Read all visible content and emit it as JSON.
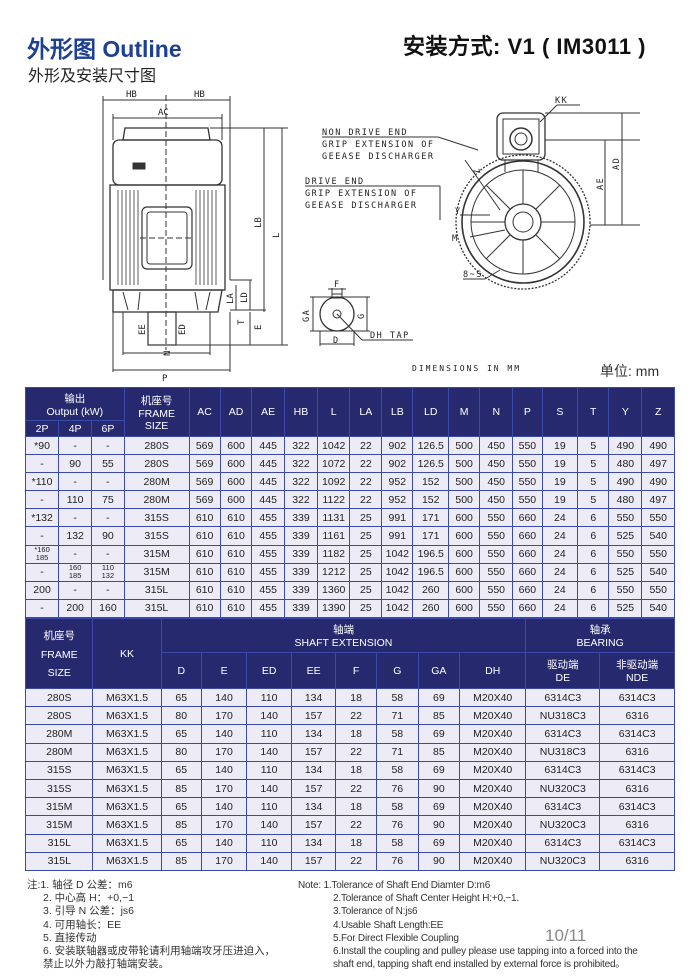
{
  "header": {
    "title": "外形图 Outline",
    "mounting": "安装方式: V1 ( IM3011 )",
    "subtitle": "外形及安装尺寸图",
    "unit": "单位: mm"
  },
  "drawing": {
    "side_labels": {
      "hb_left": "HB",
      "hb_right": "HB",
      "ac": "AC",
      "lb": "LB",
      "l": "L",
      "la": "LA",
      "ld": "LD",
      "t": "T",
      "e": "E",
      "ee": "EE",
      "ed": "ED",
      "n": "N",
      "p": "P"
    },
    "end_labels": {
      "kk": "KK",
      "ae": "AE",
      "ad": "AD",
      "y": "Y",
      "z": "Z",
      "m": "M",
      "s": "8~S"
    },
    "nde_note": [
      "NON DRIVE END",
      "GRIP EXTENSION OF",
      "GEEASE DISCHARGER"
    ],
    "de_note": [
      "DRIVE END",
      "GRIP EXTENSION OF",
      "GEEASE DISCHARGER"
    ],
    "shaft_labels": {
      "f": "F",
      "g": "G",
      "ga": "GA",
      "d": "D",
      "dh": "DH TAP"
    },
    "dimensions_note": "DIMENSIONS IN MM"
  },
  "colors": {
    "header_bg": "#27296e",
    "cell_bg": "#ecebf6",
    "border": "#3b4aa8",
    "title": "#1d3f94"
  },
  "table1": {
    "output_cn": "输出",
    "output_en": "Output (kW)",
    "poles": [
      "2P",
      "4P",
      "6P"
    ],
    "frame_cn": "机座号",
    "frame_en1": "FRAME",
    "frame_en2": "SIZE",
    "dims": [
      "AC",
      "AD",
      "AE",
      "HB",
      "L",
      "LA",
      "LB",
      "LD",
      "M",
      "N",
      "P",
      "S",
      "T",
      "Y",
      "Z"
    ],
    "rows": [
      [
        "*90",
        "-",
        "-",
        "280S",
        "569",
        "600",
        "445",
        "322",
        "1042",
        "22",
        "902",
        "126.5",
        "500",
        "450",
        "550",
        "19",
        "5",
        "490",
        "490"
      ],
      [
        "-",
        "90",
        "55",
        "280S",
        "569",
        "600",
        "445",
        "322",
        "1072",
        "22",
        "902",
        "126.5",
        "500",
        "450",
        "550",
        "19",
        "5",
        "480",
        "497"
      ],
      [
        "*110",
        "-",
        "-",
        "280M",
        "569",
        "600",
        "445",
        "322",
        "1092",
        "22",
        "952",
        "152",
        "500",
        "450",
        "550",
        "19",
        "5",
        "490",
        "490"
      ],
      [
        "-",
        "110",
        "75",
        "280M",
        "569",
        "600",
        "445",
        "322",
        "1122",
        "22",
        "952",
        "152",
        "500",
        "450",
        "550",
        "19",
        "5",
        "480",
        "497"
      ],
      [
        "*132",
        "-",
        "-",
        "315S",
        "610",
        "610",
        "455",
        "339",
        "1131",
        "25",
        "991",
        "171",
        "600",
        "550",
        "660",
        "24",
        "6",
        "550",
        "550"
      ],
      [
        "-",
        "132",
        "90",
        "315S",
        "610",
        "610",
        "455",
        "339",
        "1161",
        "25",
        "991",
        "171",
        "600",
        "550",
        "660",
        "24",
        "6",
        "525",
        "540"
      ],
      [
        "*160\n185",
        "-",
        "-",
        "315M",
        "610",
        "610",
        "455",
        "339",
        "1182",
        "25",
        "1042",
        "196.5",
        "600",
        "550",
        "660",
        "24",
        "6",
        "550",
        "550"
      ],
      [
        "-",
        "160\n185",
        "110\n132",
        "315M",
        "610",
        "610",
        "455",
        "339",
        "1212",
        "25",
        "1042",
        "196.5",
        "600",
        "550",
        "660",
        "24",
        "6",
        "525",
        "540"
      ],
      [
        "200",
        "-",
        "-",
        "315L",
        "610",
        "610",
        "455",
        "339",
        "1360",
        "25",
        "1042",
        "260",
        "600",
        "550",
        "660",
        "24",
        "6",
        "550",
        "550"
      ],
      [
        "-",
        "200",
        "160",
        "315L",
        "610",
        "610",
        "455",
        "339",
        "1390",
        "25",
        "1042",
        "260",
        "600",
        "550",
        "660",
        "24",
        "6",
        "525",
        "540"
      ]
    ]
  },
  "table2": {
    "frame_cn": "机座号",
    "frame_en1": "FRAME",
    "frame_en2": "SIZE",
    "kk": "KK",
    "shaft_cn": "轴端",
    "shaft_en": "SHAFT EXTENSION",
    "shaft_cols": [
      "D",
      "E",
      "ED",
      "EE",
      "F",
      "G",
      "GA",
      "DH"
    ],
    "bearing_cn": "轴承",
    "bearing_en": "BEARING",
    "de_cn": "驱动端",
    "de_en": "DE",
    "nde_cn": "非驱动端",
    "nde_en": "NDE",
    "rows": [
      [
        "280S",
        "M63X1.5",
        "65",
        "140",
        "110",
        "134",
        "18",
        "58",
        "69",
        "M20X40",
        "6314C3",
        "6314C3"
      ],
      [
        "280S",
        "M63X1.5",
        "80",
        "170",
        "140",
        "157",
        "22",
        "71",
        "85",
        "M20X40",
        "NU318C3",
        "6316"
      ],
      [
        "280M",
        "M63X1.5",
        "65",
        "140",
        "110",
        "134",
        "18",
        "58",
        "69",
        "M20X40",
        "6314C3",
        "6314C3"
      ],
      [
        "280M",
        "M63X1.5",
        "80",
        "170",
        "140",
        "157",
        "22",
        "71",
        "85",
        "M20X40",
        "NU318C3",
        "6316"
      ],
      [
        "315S",
        "M63X1.5",
        "65",
        "140",
        "110",
        "134",
        "18",
        "58",
        "69",
        "M20X40",
        "6314C3",
        "6314C3"
      ],
      [
        "315S",
        "M63X1.5",
        "85",
        "170",
        "140",
        "157",
        "22",
        "76",
        "90",
        "M20X40",
        "NU320C3",
        "6316"
      ],
      [
        "315M",
        "M63X1.5",
        "65",
        "140",
        "110",
        "134",
        "18",
        "58",
        "69",
        "M20X40",
        "6314C3",
        "6314C3"
      ],
      [
        "315M",
        "M63X1.5",
        "85",
        "170",
        "140",
        "157",
        "22",
        "76",
        "90",
        "M20X40",
        "NU320C3",
        "6316"
      ],
      [
        "315L",
        "M63X1.5",
        "65",
        "140",
        "110",
        "134",
        "18",
        "58",
        "69",
        "M20X40",
        "6314C3",
        "6314C3"
      ],
      [
        "315L",
        "M63X1.5",
        "85",
        "170",
        "140",
        "157",
        "22",
        "76",
        "90",
        "M20X40",
        "NU320C3",
        "6316"
      ]
    ]
  },
  "notes_cn": [
    "注:1. 轴径 D 公差：m6",
    "2. 中心高 H：+0,−1",
    "3. 引导 N 公差：js6",
    "4. 可用轴长：EE",
    "5. 直接传动",
    "6. 安装联轴器或皮带轮请利用轴端攻牙压进迫入，",
    "禁止以外力敲打轴端安装。"
  ],
  "notes_en": [
    "Note: 1.Tolerance of Shaft End Diamter D:m6",
    "2.Tolerance of Shaft Center Height H:+0,−1.",
    "3.Tolerance of N:js6",
    "4.Usable Shaft Length:EE",
    "5.For Direct Flexible Coupling",
    "6.Install the coupling and pulley please use tapping into a forced into the",
    "shaft end, tapping shaft end installed by external force is prohibited。"
  ],
  "page_number": "10/11"
}
